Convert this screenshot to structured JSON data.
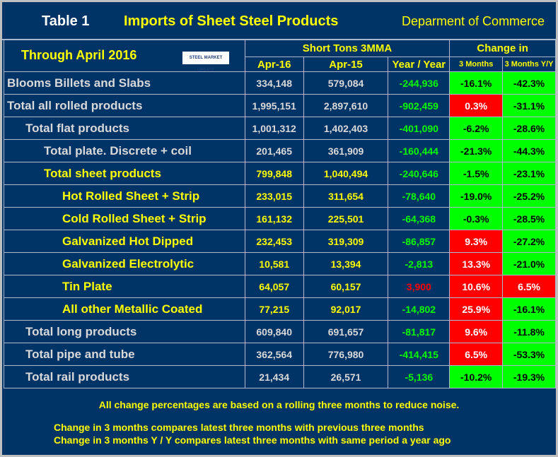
{
  "header": {
    "table_label": "Table 1",
    "title": "Imports of Sheet Steel Products",
    "source": "Deparment of Commerce"
  },
  "subheader": {
    "period": "Through April 2016",
    "logo_text": "STEEL MARKET UPDATE",
    "group1": "Short Tons 3MMA",
    "group2": "Change in",
    "columns": [
      "Apr-16",
      "Apr-15",
      "Year / Year",
      "3 Months",
      "3 Months Y/Y"
    ]
  },
  "rows": [
    {
      "label": "Blooms Billets and Slabs",
      "a16": "334,148",
      "a15": "579,084",
      "yoy": "-244,936",
      "m3": "-16.1%",
      "m3yy": "-42.3%"
    },
    {
      "label": "Total all rolled products",
      "a16": "1,995,151",
      "a15": "2,897,610",
      "yoy": "-902,459",
      "m3": "0.3%",
      "m3yy": "-31.1%"
    },
    {
      "label": "Total flat products",
      "a16": "1,001,312",
      "a15": "1,402,403",
      "yoy": "-401,090",
      "m3": "-6.2%",
      "m3yy": "-28.6%"
    },
    {
      "label": "Total plate. Discrete + coil",
      "a16": "201,465",
      "a15": "361,909",
      "yoy": "-160,444",
      "m3": "-21.3%",
      "m3yy": "-44.3%"
    },
    {
      "label": "Total sheet products",
      "a16": "799,848",
      "a15": "1,040,494",
      "yoy": "-240,646",
      "m3": "-1.5%",
      "m3yy": "-23.1%"
    },
    {
      "label": "Hot Rolled Sheet + Strip",
      "a16": "233,015",
      "a15": "311,654",
      "yoy": "-78,640",
      "m3": "-19.0%",
      "m3yy": "-25.2%"
    },
    {
      "label": "Cold Rolled Sheet + Strip",
      "a16": "161,132",
      "a15": "225,501",
      "yoy": "-64,368",
      "m3": "-0.3%",
      "m3yy": "-28.5%"
    },
    {
      "label": "Galvanized Hot Dipped",
      "a16": "232,453",
      "a15": "319,309",
      "yoy": "-86,857",
      "m3": "9.3%",
      "m3yy": "-27.2%"
    },
    {
      "label": "Galvanized Electrolytic",
      "a16": "10,581",
      "a15": "13,394",
      "yoy": "-2,813",
      "m3": "13.3%",
      "m3yy": "-21.0%"
    },
    {
      "label": "Tin Plate",
      "a16": "64,057",
      "a15": "60,157",
      "yoy": "3,900",
      "m3": "10.6%",
      "m3yy": "6.5%"
    },
    {
      "label": "All other Metallic Coated",
      "a16": "77,215",
      "a15": "92,017",
      "yoy": "-14,802",
      "m3": "25.9%",
      "m3yy": "-16.1%"
    },
    {
      "label": "Total long products",
      "a16": "609,840",
      "a15": "691,657",
      "yoy": "-81,817",
      "m3": "9.6%",
      "m3yy": "-11.8%"
    },
    {
      "label": "Total pipe and tube",
      "a16": "362,564",
      "a15": "776,980",
      "yoy": "-414,415",
      "m3": "6.5%",
      "m3yy": "-53.3%"
    },
    {
      "label": "Total rail products",
      "a16": "21,434",
      "a15": "26,571",
      "yoy": "-5,136",
      "m3": "-10.2%",
      "m3yy": "-19.3%"
    }
  ],
  "footer": {
    "note1": "All change percentages are based on a rolling three months to reduce noise.",
    "note2": "Change in 3 months compares latest three months with previous three months",
    "note3": "Change in 3 months  Y / Y compares latest three months with same period a year ago"
  },
  "colors": {
    "background": "#003366",
    "increase": "#ff0000",
    "decrease": "#00ff00",
    "highlight_text": "#ffff00"
  }
}
